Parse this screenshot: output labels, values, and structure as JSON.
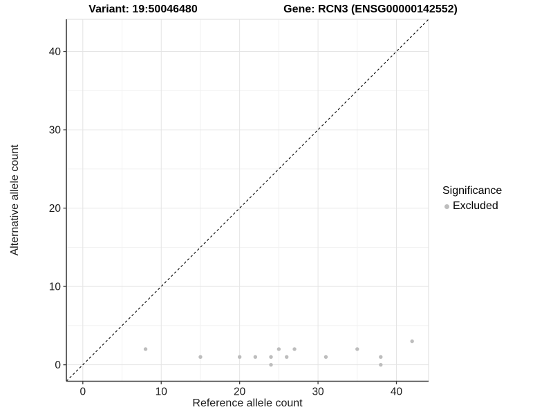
{
  "chart_data": {
    "type": "scatter",
    "titles": {
      "left": "Variant: 19:50046480",
      "right": "Gene: RCN3 (ENSG00000142552)"
    },
    "xlabel": "Reference allele count",
    "ylabel": "Alternative allele count",
    "x_ticks": [
      0,
      10,
      20,
      30,
      40
    ],
    "y_ticks": [
      0,
      10,
      20,
      30,
      40
    ],
    "x_minor_ticks": [
      5,
      15,
      25,
      35
    ],
    "y_minor_ticks": [
      5,
      15,
      25,
      35
    ],
    "xlim": [
      -2.1,
      44.1
    ],
    "ylim": [
      -2.1,
      44.1
    ],
    "grid": "major+minor",
    "reference_line": {
      "style": "dashed",
      "slope": 1,
      "intercept": 0,
      "color": "#000000"
    },
    "series": [
      {
        "name": "Excluded",
        "color": "#bdbdbd",
        "points": [
          [
            8,
            2
          ],
          [
            15,
            1
          ],
          [
            20,
            1
          ],
          [
            22,
            1
          ],
          [
            24,
            0
          ],
          [
            24,
            1
          ],
          [
            25,
            2
          ],
          [
            26,
            1
          ],
          [
            27,
            2
          ],
          [
            31,
            1
          ],
          [
            35,
            2
          ],
          [
            38,
            0
          ],
          [
            38,
            1
          ],
          [
            42,
            3
          ]
        ]
      }
    ],
    "legend": {
      "title": "Significance",
      "position": "right",
      "entries": [
        {
          "label": "Excluded",
          "color": "#bdbdbd"
        }
      ]
    }
  },
  "colors": {
    "background": "#ffffff",
    "point": "#bdbdbd",
    "grid_major": "#e4e4e4",
    "grid_minor": "#f1f1f1",
    "panel_border": "#dedede",
    "axis_line": "#3c3c3c",
    "text": "#1a1a1a"
  }
}
